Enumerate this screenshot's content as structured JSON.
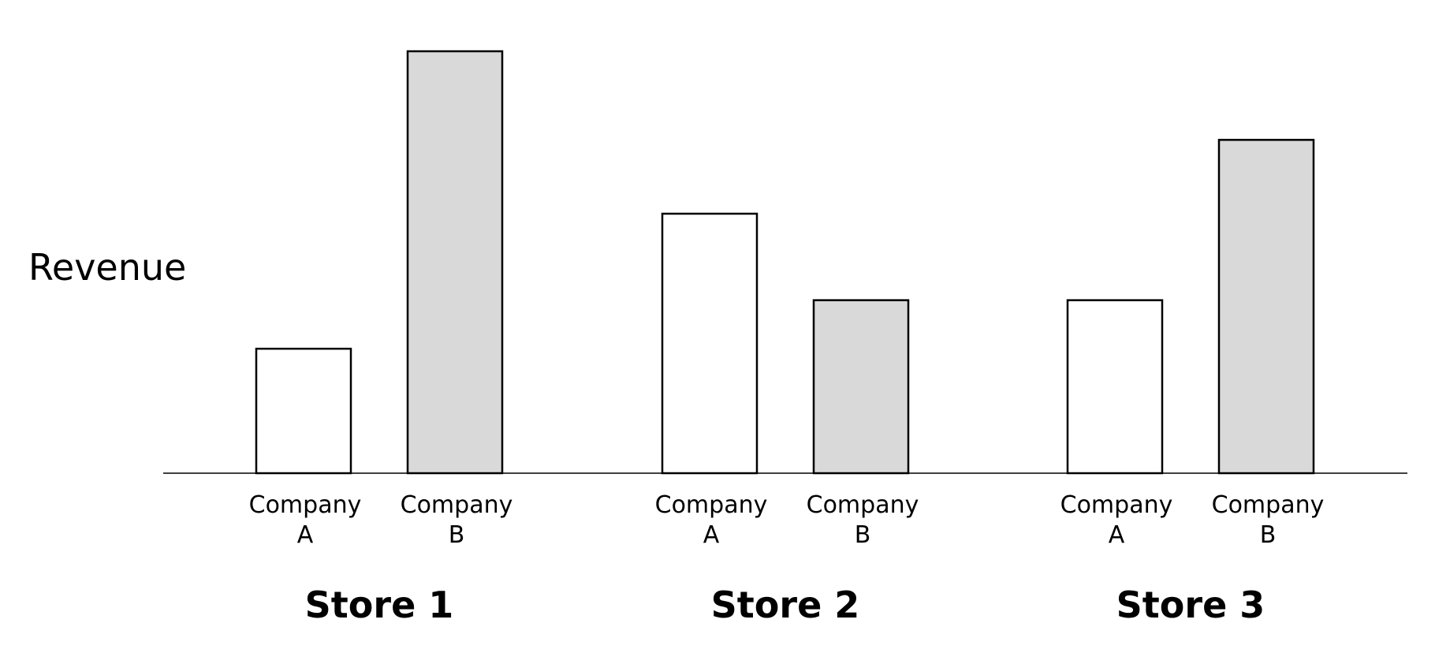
{
  "chart_data": {
    "type": "bar",
    "ylabel": "Revenue",
    "xlabel": "",
    "title": "",
    "ylim": [
      0,
      100
    ],
    "grid": false,
    "legend": "none",
    "groups": [
      {
        "name": "Store 1",
        "bars": [
          {
            "label_line1": "Company",
            "label_line2": "A",
            "value": 29.5,
            "series": "Company A"
          },
          {
            "label_line1": "Company",
            "label_line2": "B",
            "value": 100,
            "series": "Company B"
          }
        ]
      },
      {
        "name": "Store 2",
        "bars": [
          {
            "label_line1": "Company",
            "label_line2": "A",
            "value": 61.5,
            "series": "Company A"
          },
          {
            "label_line1": "Company",
            "label_line2": "B",
            "value": 41,
            "series": "Company B"
          }
        ]
      },
      {
        "name": "Store 3",
        "bars": [
          {
            "label_line1": "Company",
            "label_line2": "A",
            "value": 41,
            "series": "Company A"
          },
          {
            "label_line1": "Company",
            "label_line2": "B",
            "value": 79,
            "series": "Company B"
          }
        ]
      }
    ],
    "colors": {
      "Company A": "#ffffff",
      "Company B": "#d9d9d9",
      "outline": "#000000"
    }
  }
}
